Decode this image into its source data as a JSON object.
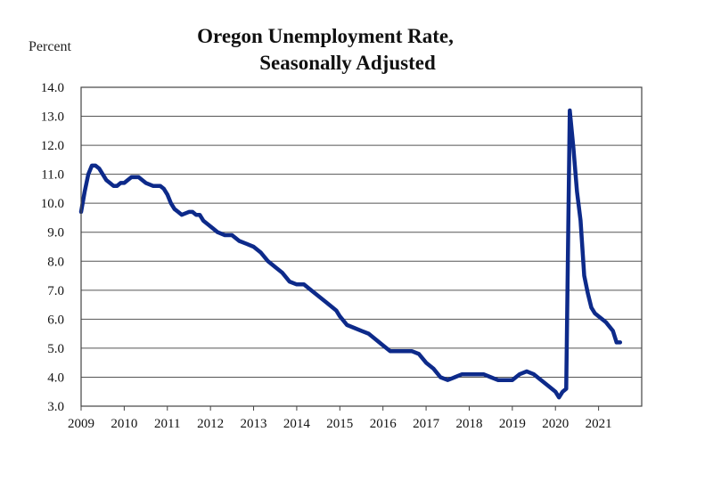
{
  "chart_data": {
    "type": "line",
    "title": [
      "Oregon Unemployment Rate,",
      "Seasonally Adjusted"
    ],
    "ylabel": "Percent",
    "xlabel": "",
    "ylim": [
      3.0,
      14.0
    ],
    "xlim": [
      2009.0,
      2022.0
    ],
    "yticks": [
      "14.0",
      "13.0",
      "12.0",
      "11.0",
      "10.0",
      "9.0",
      "8.0",
      "7.0",
      "6.0",
      "5.0",
      "4.0",
      "3.0"
    ],
    "xticks": [
      "2009",
      "2010",
      "2011",
      "2012",
      "2013",
      "2014",
      "2015",
      "2016",
      "2017",
      "2018",
      "2019",
      "2020",
      "2021"
    ],
    "grid": true,
    "line_color": "#0d2a8a",
    "series": [
      {
        "x": [
          2009.0,
          2009.083,
          2009.167,
          2009.25,
          2009.333,
          2009.417,
          2009.5,
          2009.583,
          2009.667,
          2009.75,
          2009.833,
          2009.917,
          2010.0,
          2010.083,
          2010.167,
          2010.25,
          2010.333,
          2010.5,
          2010.667,
          2010.833,
          2010.917,
          2011.0,
          2011.083,
          2011.167,
          2011.25,
          2011.333,
          2011.5,
          2011.583,
          2011.667,
          2011.75,
          2011.833,
          2012.0,
          2012.167,
          2012.333,
          2012.5,
          2012.667,
          2012.833,
          2013.0,
          2013.167,
          2013.333,
          2013.5,
          2013.667,
          2013.833,
          2014.0,
          2014.167,
          2014.333,
          2014.5,
          2014.667,
          2014.833,
          2014.917,
          2015.0,
          2015.167,
          2015.333,
          2015.5,
          2015.667,
          2015.833,
          2016.0,
          2016.167,
          2016.333,
          2016.5,
          2016.667,
          2016.833,
          2017.0,
          2017.167,
          2017.333,
          2017.5,
          2017.667,
          2017.833,
          2018.0,
          2018.167,
          2018.333,
          2018.5,
          2018.667,
          2018.833,
          2019.0,
          2019.167,
          2019.333,
          2019.5,
          2019.667,
          2019.833,
          2019.917,
          2020.0,
          2020.083,
          2020.167,
          2020.25,
          2020.333,
          2020.417,
          2020.5,
          2020.583,
          2020.667,
          2020.75,
          2020.833,
          2020.917,
          2021.0,
          2021.167,
          2021.333,
          2021.417,
          2021.5
        ],
        "y": [
          9.7,
          10.4,
          11.0,
          11.3,
          11.3,
          11.2,
          11.0,
          10.8,
          10.7,
          10.6,
          10.6,
          10.7,
          10.7,
          10.8,
          10.9,
          10.9,
          10.9,
          10.7,
          10.6,
          10.6,
          10.5,
          10.3,
          10.0,
          9.8,
          9.7,
          9.6,
          9.7,
          9.7,
          9.6,
          9.6,
          9.4,
          9.2,
          9.0,
          8.9,
          8.9,
          8.7,
          8.6,
          8.5,
          8.3,
          8.0,
          7.8,
          7.6,
          7.3,
          7.2,
          7.2,
          7.0,
          6.8,
          6.6,
          6.4,
          6.3,
          6.1,
          5.8,
          5.7,
          5.6,
          5.5,
          5.3,
          5.1,
          4.9,
          4.9,
          4.9,
          4.9,
          4.8,
          4.5,
          4.3,
          4.0,
          3.9,
          4.0,
          4.1,
          4.1,
          4.1,
          4.1,
          4.0,
          3.9,
          3.9,
          3.9,
          4.1,
          4.2,
          4.1,
          3.9,
          3.7,
          3.6,
          3.5,
          3.3,
          3.5,
          3.6,
          13.2,
          11.9,
          10.4,
          9.4,
          7.5,
          6.9,
          6.4,
          6.2,
          6.1,
          5.9,
          5.6,
          5.2,
          5.2
        ]
      }
    ]
  }
}
